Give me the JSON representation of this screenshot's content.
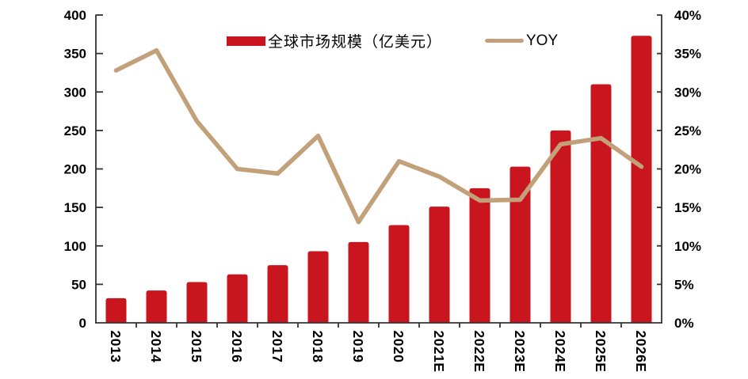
{
  "chart_data": {
    "type": "combo",
    "categories": [
      "2013",
      "2014",
      "2015",
      "2016",
      "2017",
      "2018",
      "2019",
      "2020",
      "2021E",
      "2022E",
      "2023E",
      "2024E",
      "2025E",
      "2026E"
    ],
    "series": [
      {
        "name": "全球市场规模（亿美元）",
        "type": "bar",
        "axis": "left",
        "color": "#C9151D",
        "values": [
          32,
          42,
          53,
          63,
          75,
          93,
          105,
          127,
          151,
          175,
          203,
          250,
          310,
          373
        ]
      },
      {
        "name": "YOY",
        "type": "line",
        "axis": "right",
        "color": "#C2A17A",
        "values_percent": [
          32.8,
          35.4,
          26.2,
          20.0,
          19.4,
          24.3,
          13.1,
          21.0,
          19.0,
          15.9,
          16.0,
          23.2,
          24.0,
          20.3
        ]
      }
    ],
    "left_axis": {
      "min": 0,
      "max": 400,
      "step": 50,
      "ticks": [
        "0",
        "50",
        "100",
        "150",
        "200",
        "250",
        "300",
        "350",
        "400"
      ]
    },
    "right_axis": {
      "min": 0,
      "max": 40,
      "step": 5,
      "ticks": [
        "0%",
        "5%",
        "10%",
        "15%",
        "20%",
        "25%",
        "30%",
        "35%",
        "40%"
      ]
    },
    "legend_position": "top",
    "grid": false,
    "background": "#FFFFFF",
    "axis_color": "#333333",
    "text_color": "#000000"
  }
}
